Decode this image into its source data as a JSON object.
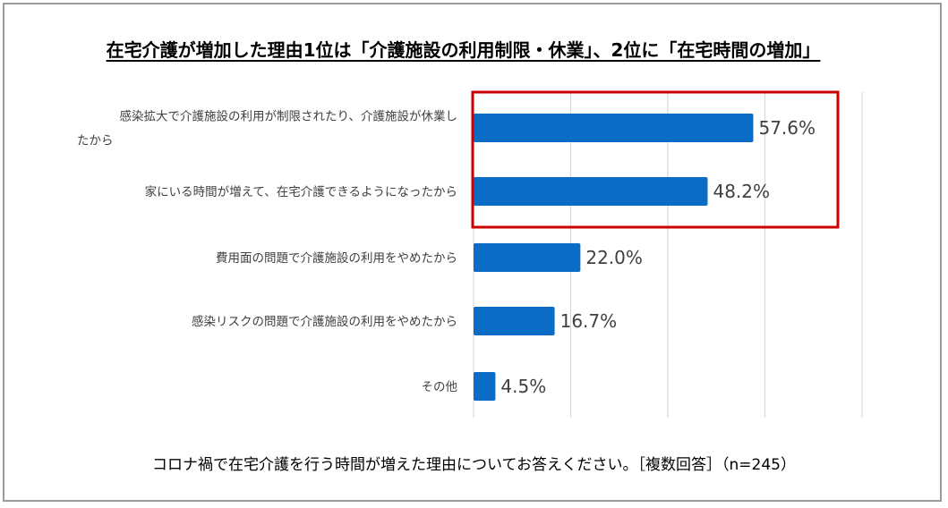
{
  "title": "在宅介護が増加した理由1位は「介護施設の利用制限・休業」、2位に「在宅時間の増加」",
  "footer": "コロナ禍で在宅介護を行う時間が増えた理由についてお答えください。［複数回答］（n=245）",
  "colors": {
    "bar": "#0a6cc4",
    "highlight_box": "#cc0000",
    "grid": "#d9d9d9",
    "border": "#9b9b9b"
  },
  "chart_data": {
    "type": "bar",
    "orientation": "horizontal",
    "categories": [
      "感染拡大で介護施設の利用が制限されたり、介護施設が休業したから",
      "家にいる時間が増えて、在宅介護できるようになったから",
      "費用面の問題で介護施設の利用をやめたから",
      "感染リスクの問題で介護施設の利用をやめたから",
      "その他"
    ],
    "values": [
      57.6,
      48.2,
      22.0,
      16.7,
      4.5
    ],
    "data_labels": [
      "57.6%",
      "48.2%",
      "22.0%",
      "16.7%",
      "4.5%"
    ],
    "xlim": [
      0,
      80
    ],
    "grid": true,
    "highlighted_categories": [
      0,
      1
    ]
  }
}
